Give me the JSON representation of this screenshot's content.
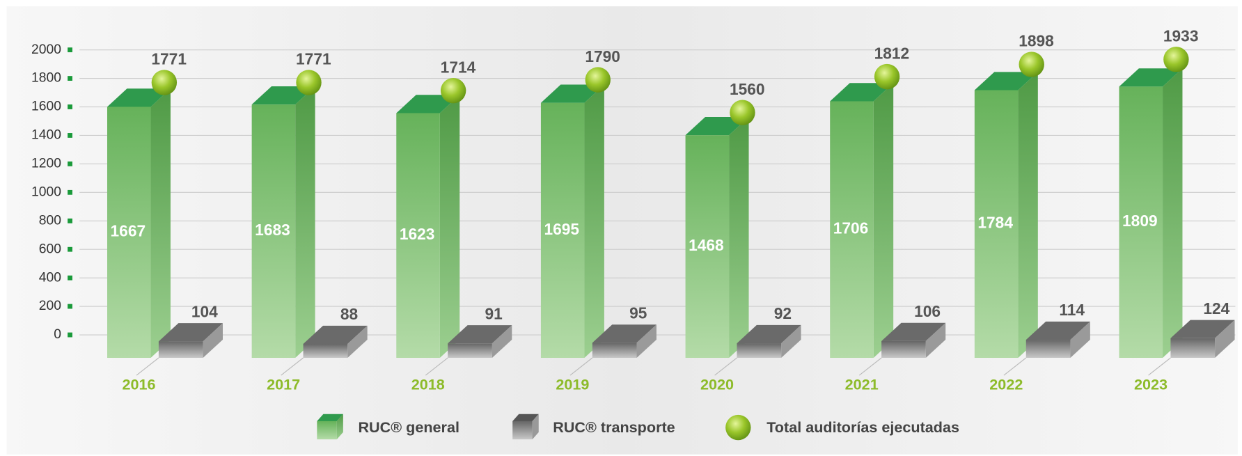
{
  "chart_data": {
    "type": "bar3d",
    "categories": [
      "2016",
      "2017",
      "2018",
      "2019",
      "2020",
      "2021",
      "2022",
      "2023"
    ],
    "series": [
      {
        "name": "RUC® general",
        "color": "#6cb55f",
        "values": [
          1667,
          1683,
          1623,
          1695,
          1468,
          1706,
          1784,
          1809
        ]
      },
      {
        "name": "RUC® transporte",
        "color": "#6e6e6e",
        "values": [
          104,
          88,
          91,
          95,
          92,
          106,
          114,
          124
        ]
      },
      {
        "name": "Total auditorías ejecutadas",
        "color": "#8dbb2a",
        "values": [
          1771,
          1771,
          1714,
          1790,
          1560,
          1812,
          1898,
          1933
        ]
      }
    ],
    "ylim": [
      0,
      2000
    ],
    "yticks": [
      0,
      200,
      400,
      600,
      800,
      1000,
      1200,
      1400,
      1600,
      1800,
      2000
    ],
    "grid": true
  }
}
